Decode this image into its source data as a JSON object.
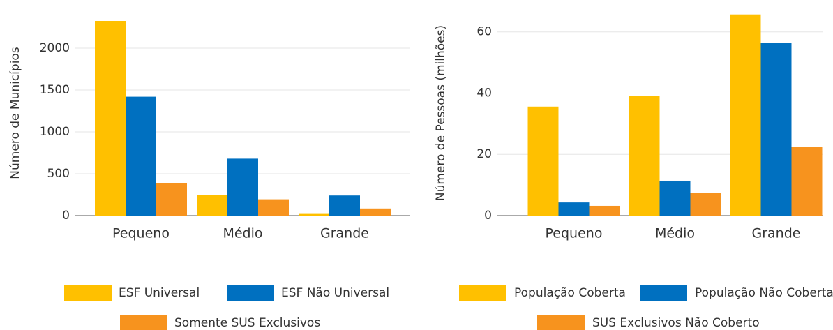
{
  "chart_data": [
    {
      "type": "bar",
      "y_label": "Número de Municípios",
      "categories": [
        "Pequeno",
        "Médio",
        "Grande"
      ],
      "series": [
        {
          "name": "ESF Universal",
          "color": "#ffc000",
          "values": [
            2325,
            250,
            20
          ]
        },
        {
          "name": "ESF Não Universal",
          "color": "#0070c0",
          "values": [
            1420,
            680,
            240
          ]
        },
        {
          "name": "Somente SUS Exclusivos",
          "color": "#f7931e",
          "values": [
            385,
            195,
            85
          ]
        }
      ],
      "ylim": [
        0,
        2450
      ],
      "yticks": [
        0,
        500,
        1000,
        1500,
        2000
      ],
      "grid": true,
      "legend": "bottom"
    },
    {
      "type": "bar",
      "y_label": "Número de Pessoas (milhões)",
      "categories": [
        "Pequeno",
        "Médio",
        "Grande"
      ],
      "series": [
        {
          "name": "População Coberta",
          "color": "#ffc000",
          "values": [
            35.6,
            39,
            65.7
          ]
        },
        {
          "name": "População Não Coberta",
          "color": "#0070c0",
          "values": [
            4.3,
            11.4,
            56.4
          ]
        },
        {
          "name": "SUS Exclusivos Não Coberto",
          "color": "#f7931e",
          "values": [
            3.2,
            7.5,
            22.4
          ]
        }
      ],
      "ylim": [
        0,
        67
      ],
      "yticks": [
        0,
        20,
        40,
        60
      ],
      "grid": true,
      "legend": "bottom"
    }
  ]
}
